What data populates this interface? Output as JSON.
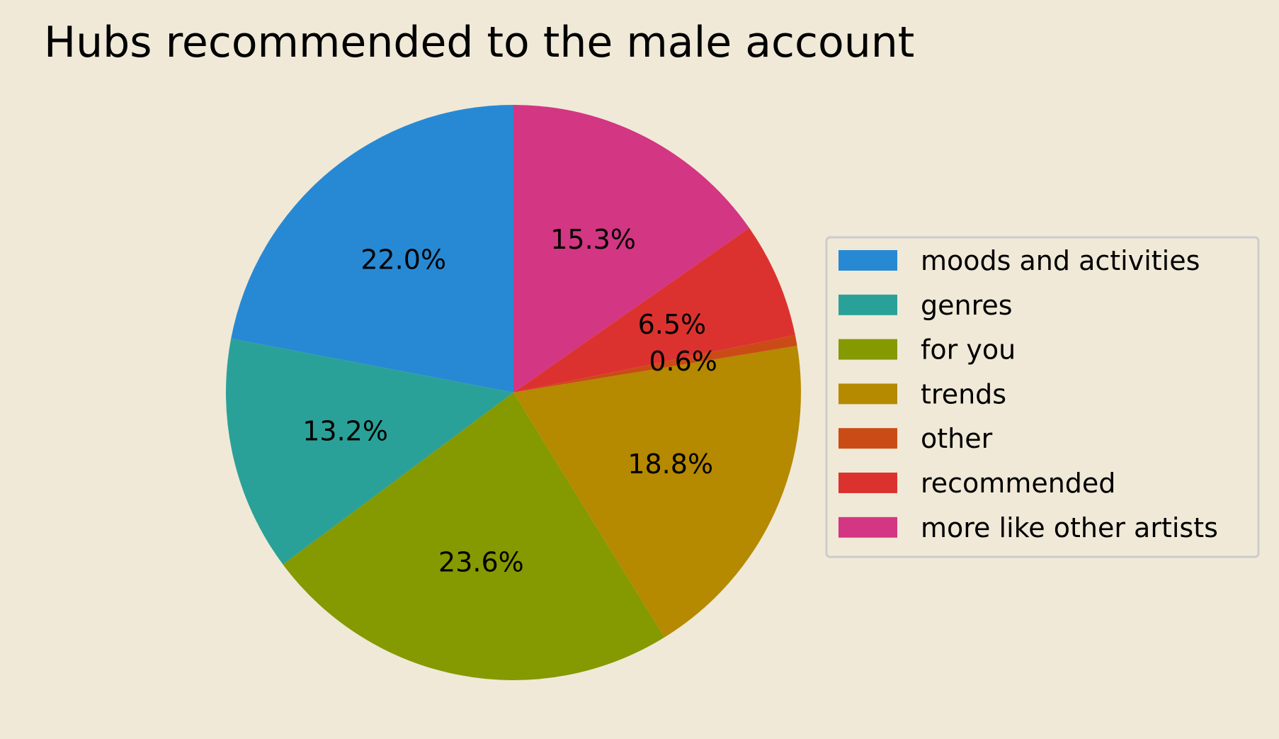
{
  "chart_data": {
    "type": "pie",
    "title": "Hubs recommended to the male account",
    "start_angle_deg": 90,
    "direction": "counterclockwise",
    "legend_position": "right",
    "slices": [
      {
        "label": "moods and activities",
        "value": 22.0,
        "display": "22.0%",
        "color": "#2789d4"
      },
      {
        "label": "genres",
        "value": 13.2,
        "display": "13.2%",
        "color": "#2aa198"
      },
      {
        "label": "for you",
        "value": 23.6,
        "display": "23.6%",
        "color": "#859900"
      },
      {
        "label": "trends",
        "value": 18.8,
        "display": "18.8%",
        "color": "#b58900"
      },
      {
        "label": "other",
        "value": 0.6,
        "display": "0.6%",
        "color": "#cb4b16"
      },
      {
        "label": "recommended",
        "value": 6.5,
        "display": "6.5%",
        "color": "#dc322f"
      },
      {
        "label": "more like other artists",
        "value": 15.3,
        "display": "15.3%",
        "color": "#d33682"
      }
    ]
  }
}
